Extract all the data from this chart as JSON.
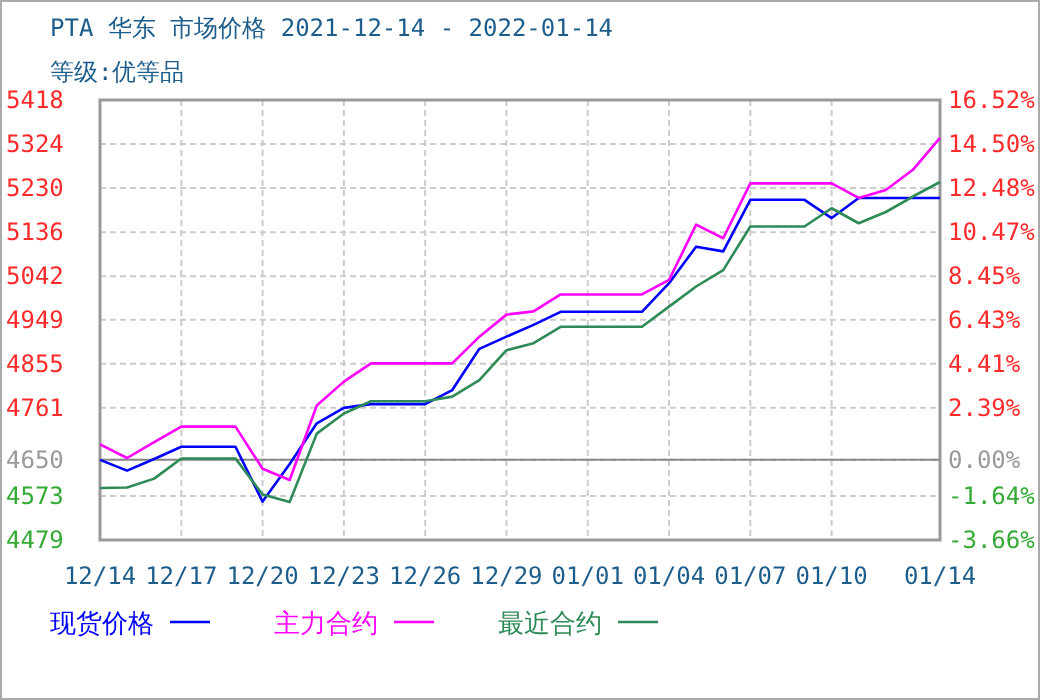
{
  "chart_data": {
    "type": "line",
    "title": "PTA 华东 市场价格 2021-12-14 - 2022-01-14",
    "subtitle": "等级:优等品",
    "x": [
      "2021-12-14",
      "2021-12-15",
      "2021-12-16",
      "2021-12-17",
      "2021-12-18",
      "2021-12-19",
      "2021-12-20",
      "2021-12-21",
      "2021-12-22",
      "2021-12-23",
      "2021-12-24",
      "2021-12-25",
      "2021-12-26",
      "2021-12-27",
      "2021-12-28",
      "2021-12-29",
      "2021-12-30",
      "2021-12-31",
      "2022-01-01",
      "2022-01-02",
      "2022-01-03",
      "2022-01-04",
      "2022-01-05",
      "2022-01-06",
      "2022-01-07",
      "2022-01-08",
      "2022-01-09",
      "2022-01-10",
      "2022-01-11",
      "2022-01-12",
      "2022-01-13",
      "2022-01-14"
    ],
    "series": [
      {
        "name": "现货价格",
        "color": "#0000ff",
        "values": [
          4650,
          4627,
          4652,
          4678,
          4678,
          4678,
          4561,
          4641,
          4728,
          4761,
          4769,
          4769,
          4769,
          4799,
          4887,
          4913,
          4938,
          4966,
          4966,
          4966,
          4966,
          5027,
          5105,
          5095,
          5205,
          5205,
          5205,
          5166,
          5209,
          5209,
          5209,
          5209
        ]
      },
      {
        "name": "主力合约",
        "color": "#ff00ff",
        "values": [
          4683,
          4654,
          4688,
          4721,
          4721,
          4721,
          4631,
          4607,
          4766,
          4817,
          4856,
          4856,
          4856,
          4856,
          4913,
          4960,
          4967,
          5003,
          5003,
          5003,
          5003,
          5034,
          5152,
          5123,
          5240,
          5240,
          5240,
          5240,
          5209,
          5226,
          5269,
          5337
        ]
      },
      {
        "name": "最近合约",
        "color": "#2e8b57",
        "values": [
          4590,
          4591,
          4610,
          4653,
          4653,
          4653,
          4576,
          4560,
          4706,
          4749,
          4775,
          4775,
          4775,
          4785,
          4820,
          4884,
          4899,
          4934,
          4934,
          4934,
          4934,
          4977,
          5020,
          5055,
          5148,
          5148,
          5148,
          5187,
          5155,
          5179,
          5212,
          5243
        ]
      }
    ],
    "xlim": [
      "2021-12-14",
      "2022-01-14"
    ],
    "xticks": [
      {
        "value": "2021-12-14",
        "label": "12/14"
      },
      {
        "value": "2021-12-17",
        "label": "12/17"
      },
      {
        "value": "2021-12-20",
        "label": "12/20"
      },
      {
        "value": "2021-12-23",
        "label": "12/23"
      },
      {
        "value": "2021-12-26",
        "label": "12/26"
      },
      {
        "value": "2021-12-29",
        "label": "12/29"
      },
      {
        "value": "2022-01-01",
        "label": "01/01"
      },
      {
        "value": "2022-01-04",
        "label": "01/04"
      },
      {
        "value": "2022-01-07",
        "label": "01/07"
      },
      {
        "value": "2022-01-10",
        "label": "01/10"
      },
      {
        "value": "2022-01-14",
        "label": "01/14"
      }
    ],
    "ylim": [
      4479,
      5418
    ],
    "yticks": [
      4479,
      4573,
      4650,
      4761,
      4855,
      4949,
      5042,
      5136,
      5230,
      5324,
      5418
    ],
    "y2lim": [
      -3.66,
      16.52
    ],
    "y2ticks": [
      {
        "value": -3.66,
        "label": "-3.66%"
      },
      {
        "value": -1.64,
        "label": "-1.64%"
      },
      {
        "value": 0,
        "label": "0.00%"
      },
      {
        "value": 2.39,
        "label": "2.39%"
      },
      {
        "value": 4.41,
        "label": "4.41%"
      },
      {
        "value": 6.43,
        "label": "6.43%"
      },
      {
        "value": 8.45,
        "label": "8.45%"
      },
      {
        "value": 10.47,
        "label": "10.47%"
      },
      {
        "value": 12.48,
        "label": "12.48%"
      },
      {
        "value": 14.5,
        "label": "14.50%"
      },
      {
        "value": 16.52,
        "label": "16.52%"
      }
    ],
    "ref_lines": [
      {
        "axis": "y",
        "value": 4650,
        "color": "#888888"
      }
    ],
    "grid": true,
    "legend": "bottom",
    "line_style": "solid",
    "marker": "none"
  }
}
